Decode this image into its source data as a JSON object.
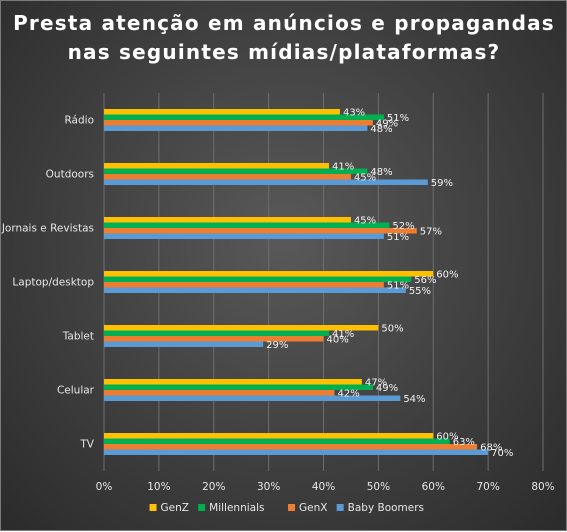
{
  "chart_data": {
    "type": "bar",
    "orientation": "horizontal",
    "title_lines": [
      "Presta atenção em anúncios e propagandas",
      "nas seguintes mídias/plataformas?"
    ],
    "categories": [
      "Rádio",
      "Outdoors",
      "Jornais e Revistas",
      "Laptop/desktop",
      "Tablet",
      "Celular",
      "TV"
    ],
    "series": [
      {
        "name": "GenZ",
        "color": "#FFC000",
        "values": [
          43,
          41,
          45,
          60,
          50,
          47,
          60
        ]
      },
      {
        "name": "Millennials",
        "color": "#00B050",
        "values": [
          51,
          48,
          52,
          56,
          41,
          49,
          63
        ]
      },
      {
        "name": "GenX",
        "color": "#ED7D31",
        "values": [
          49,
          45,
          57,
          51,
          40,
          42,
          68
        ]
      },
      {
        "name": "Baby Boomers",
        "color": "#5B9BD5",
        "values": [
          48,
          59,
          51,
          55,
          29,
          54,
          70
        ]
      }
    ],
    "value_suffix": "%",
    "xlim": [
      0,
      80
    ],
    "xticks": [
      "0%",
      "10%",
      "20%",
      "30%",
      "40%",
      "50%",
      "60%",
      "70%",
      "80%"
    ],
    "grid": true,
    "legend_position": "bottom"
  }
}
